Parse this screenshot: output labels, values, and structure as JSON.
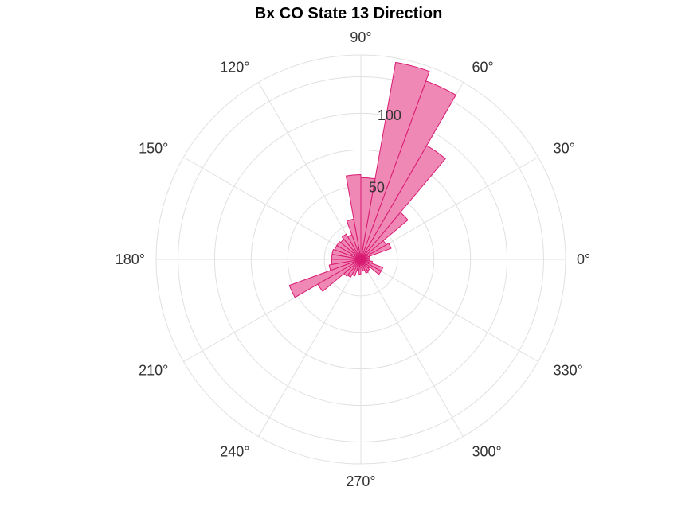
{
  "chart_data": {
    "type": "polar-histogram",
    "title": "Bx  CO State 13 Direction",
    "angle_unit": "degrees",
    "angle_ticks": [
      0,
      30,
      60,
      90,
      120,
      150,
      180,
      210,
      240,
      270,
      300,
      330
    ],
    "angle_tick_labels": [
      "0°",
      "30°",
      "60°",
      "90°",
      "120°",
      "150°",
      "180°",
      "210°",
      "240°",
      "270°",
      "300°",
      "330°"
    ],
    "r_ticks": [
      50,
      100
    ],
    "r_tick_labels": [
      "50",
      "100"
    ],
    "r_lim": [
      0,
      140
    ],
    "bin_width_deg": 10,
    "bins": [
      {
        "start": 0,
        "end": 10,
        "value": 5
      },
      {
        "start": 10,
        "end": 20,
        "value": 6
      },
      {
        "start": 20,
        "end": 30,
        "value": 22
      },
      {
        "start": 30,
        "end": 40,
        "value": 20
      },
      {
        "start": 40,
        "end": 50,
        "value": 42
      },
      {
        "start": 50,
        "end": 60,
        "value": 90
      },
      {
        "start": 60,
        "end": 70,
        "value": 130
      },
      {
        "start": 70,
        "end": 80,
        "value": 137
      },
      {
        "start": 80,
        "end": 90,
        "value": 56
      },
      {
        "start": 90,
        "end": 100,
        "value": 58
      },
      {
        "start": 100,
        "end": 110,
        "value": 28
      },
      {
        "start": 110,
        "end": 120,
        "value": 18
      },
      {
        "start": 120,
        "end": 130,
        "value": 20
      },
      {
        "start": 130,
        "end": 140,
        "value": 18
      },
      {
        "start": 140,
        "end": 150,
        "value": 19
      },
      {
        "start": 150,
        "end": 160,
        "value": 19
      },
      {
        "start": 160,
        "end": 170,
        "value": 20
      },
      {
        "start": 170,
        "end": 180,
        "value": 20
      },
      {
        "start": 180,
        "end": 190,
        "value": 20
      },
      {
        "start": 190,
        "end": 200,
        "value": 22
      },
      {
        "start": 200,
        "end": 210,
        "value": 52
      },
      {
        "start": 210,
        "end": 220,
        "value": 34
      },
      {
        "start": 220,
        "end": 230,
        "value": 15
      },
      {
        "start": 230,
        "end": 240,
        "value": 14
      },
      {
        "start": 240,
        "end": 250,
        "value": 12
      },
      {
        "start": 250,
        "end": 260,
        "value": 8
      },
      {
        "start": 260,
        "end": 270,
        "value": 10
      },
      {
        "start": 270,
        "end": 280,
        "value": 6
      },
      {
        "start": 280,
        "end": 290,
        "value": 8
      },
      {
        "start": 290,
        "end": 300,
        "value": 10
      },
      {
        "start": 300,
        "end": 310,
        "value": 9
      },
      {
        "start": 310,
        "end": 320,
        "value": 8
      },
      {
        "start": 320,
        "end": 330,
        "value": 16
      },
      {
        "start": 330,
        "end": 340,
        "value": 16
      },
      {
        "start": 340,
        "end": 350,
        "value": 8
      },
      {
        "start": 350,
        "end": 360,
        "value": 6
      }
    ],
    "grid": true,
    "bar_fill_color": "#ee82b0",
    "bar_edge_color": "#d81b72",
    "grid_color": "#e0e0e0"
  }
}
